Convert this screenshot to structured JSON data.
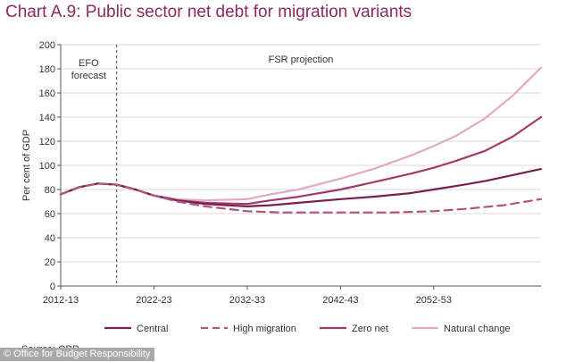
{
  "chart_data": {
    "type": "line",
    "title": "Chart A.9: Public sector net debt for migration variants",
    "ylabel": "Per cent of GDP",
    "xlabel": "",
    "ylim": [
      0,
      200
    ],
    "yticks": [
      0,
      20,
      40,
      60,
      80,
      100,
      120,
      140,
      160,
      180,
      200
    ],
    "xlim": [
      2012.5,
      2064
    ],
    "xticks": [
      {
        "x": 2012.5,
        "label": "2012-13"
      },
      {
        "x": 2022.5,
        "label": "2022-23"
      },
      {
        "x": 2032.5,
        "label": "2032-33"
      },
      {
        "x": 2042.5,
        "label": "2042-43"
      },
      {
        "x": 2052.5,
        "label": "2052-53"
      }
    ],
    "grid": true,
    "legend_position": "bottom",
    "annotations": [
      {
        "text": "EFO forecast"
      },
      {
        "text": "FSR projection"
      }
    ],
    "divider_x": 2018.5,
    "series": [
      {
        "name": "Central",
        "color": "#7a1e4f",
        "dash": "solid",
        "points": [
          [
            2012.5,
            76
          ],
          [
            2014.5,
            82
          ],
          [
            2016.5,
            85
          ],
          [
            2018.5,
            84
          ],
          [
            2020.5,
            80
          ],
          [
            2022.5,
            75
          ],
          [
            2025,
            71
          ],
          [
            2028,
            68
          ],
          [
            2032.5,
            66
          ],
          [
            2035,
            67
          ],
          [
            2038,
            69
          ],
          [
            2042.5,
            72
          ],
          [
            2046,
            74
          ],
          [
            2050,
            77
          ],
          [
            2052.5,
            80
          ],
          [
            2055,
            83
          ],
          [
            2058,
            87
          ],
          [
            2061,
            92
          ],
          [
            2064,
            97
          ]
        ]
      },
      {
        "name": "High migration",
        "color": "#b0557e",
        "dash": "dashed",
        "points": [
          [
            2012.5,
            76
          ],
          [
            2014.5,
            82
          ],
          [
            2016.5,
            85
          ],
          [
            2018.5,
            84
          ],
          [
            2020.5,
            80
          ],
          [
            2022.5,
            75
          ],
          [
            2025,
            70
          ],
          [
            2028,
            66
          ],
          [
            2032.5,
            62
          ],
          [
            2036,
            61
          ],
          [
            2040,
            61
          ],
          [
            2044,
            61
          ],
          [
            2048,
            61
          ],
          [
            2052.5,
            62
          ],
          [
            2056,
            64
          ],
          [
            2060,
            67
          ],
          [
            2064,
            72
          ]
        ]
      },
      {
        "name": "Zero net",
        "color": "#a03a6c",
        "dash": "solid",
        "points": [
          [
            2012.5,
            76
          ],
          [
            2014.5,
            82
          ],
          [
            2016.5,
            85
          ],
          [
            2018.5,
            84
          ],
          [
            2020.5,
            80
          ],
          [
            2022.5,
            75
          ],
          [
            2025,
            71
          ],
          [
            2028,
            69
          ],
          [
            2032.5,
            68
          ],
          [
            2035,
            71
          ],
          [
            2038,
            74
          ],
          [
            2042.5,
            80
          ],
          [
            2046,
            86
          ],
          [
            2050,
            93
          ],
          [
            2052.5,
            98
          ],
          [
            2055,
            104
          ],
          [
            2058,
            112
          ],
          [
            2061,
            124
          ],
          [
            2064,
            140
          ]
        ]
      },
      {
        "name": "Natural change",
        "color": "#e3a9c2",
        "dash": "solid",
        "points": [
          [
            2012.5,
            76
          ],
          [
            2014.5,
            82
          ],
          [
            2016.5,
            85
          ],
          [
            2018.5,
            84
          ],
          [
            2020.5,
            80
          ],
          [
            2022.5,
            75
          ],
          [
            2025,
            72
          ],
          [
            2028,
            71
          ],
          [
            2032.5,
            72
          ],
          [
            2035,
            76
          ],
          [
            2038,
            80
          ],
          [
            2042.5,
            89
          ],
          [
            2046,
            97
          ],
          [
            2050,
            108
          ],
          [
            2052.5,
            116
          ],
          [
            2055,
            125
          ],
          [
            2058,
            139
          ],
          [
            2061,
            158
          ],
          [
            2064,
            181
          ]
        ]
      }
    ]
  },
  "footer": {
    "source": "Source: OBR",
    "credit": "© Office for Budget Responsibility"
  }
}
